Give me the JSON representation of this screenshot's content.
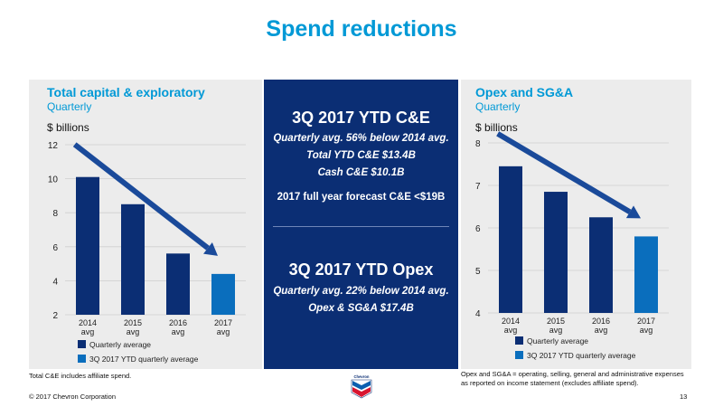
{
  "title": "Spend reductions",
  "left_panel": {
    "title": "Total capital & exploratory",
    "subtitle": "Quarterly",
    "unit": "$ billions"
  },
  "right_panel": {
    "title": "Opex and SG&A",
    "subtitle": "Quarterly",
    "unit": "$ billions"
  },
  "center": {
    "heading1": "3Q 2017 YTD C&E",
    "line1": "Quarterly avg. 56% below 2014 avg.",
    "line2": "Total YTD C&E $13.4B",
    "line3": "Cash C&E $10.1B",
    "line4": "2017 full year forecast C&E <$19B",
    "heading2": "3Q 2017 YTD Opex",
    "line5": "Quarterly avg. 22% below 2014 avg.",
    "line6": "Opex & SG&A $17.4B"
  },
  "footer": {
    "left_note": "Total C&E includes affiliate spend.",
    "right_note_1": "Opex and SG&A = operating, selling, general and administrative expenses",
    "right_note_2": "as reported on income statement (excludes affiliate spend).",
    "copyright": "© 2017 Chevron Corporation",
    "page": "13",
    "logo_text": "Chevron"
  },
  "colors": {
    "accent": "#0099d6",
    "dark_bar": "#0b2e74",
    "light_bar": "#0a6ebd",
    "arrow": "#1a4a9a",
    "panel_bg": "#ececec"
  },
  "chart_data": [
    {
      "type": "bar",
      "title": "Total capital & exploratory",
      "subtitle": "Quarterly",
      "ylabel": "$ billions",
      "categories": [
        "2014\navg",
        "2015\navg",
        "2016\navg",
        "2017\navg"
      ],
      "values": [
        10.1,
        8.5,
        5.6,
        4.4
      ],
      "ylim": [
        2,
        12
      ],
      "yticks": [
        2,
        4,
        6,
        8,
        10,
        12
      ],
      "grid": true,
      "legend": [
        "Quarterly average",
        "3Q 2017 YTD quarterly average"
      ],
      "legend_placement": "bottom-left"
    },
    {
      "type": "bar",
      "title": "Opex and SG&A",
      "subtitle": "Quarterly",
      "ylabel": "$ billions",
      "categories": [
        "2014\navg",
        "2015\navg",
        "2016\navg",
        "2017\navg"
      ],
      "values": [
        7.45,
        6.85,
        6.25,
        5.8
      ],
      "ylim": [
        4,
        8
      ],
      "yticks": [
        4,
        5,
        6,
        7,
        8
      ],
      "grid": true,
      "legend": [
        "Quarterly average",
        "3Q 2017 YTD quarterly average"
      ],
      "legend_placement": "bottom-left"
    }
  ]
}
